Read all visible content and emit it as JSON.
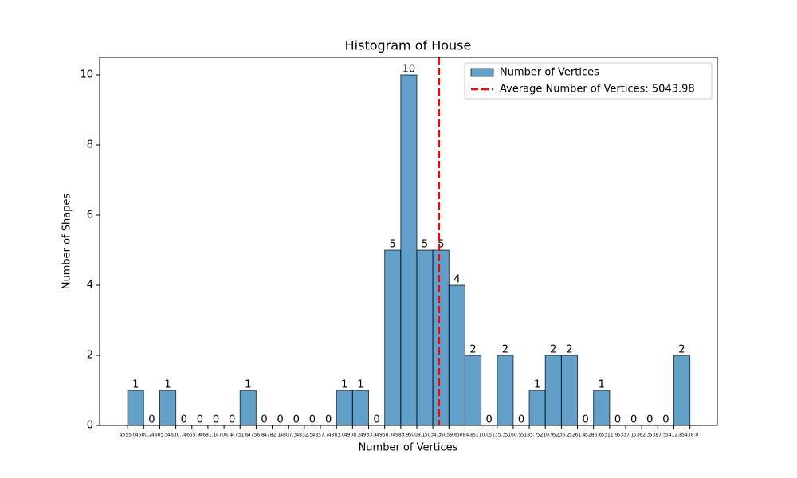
{
  "chart_data": {
    "type": "histogram",
    "title": "Histogram of House",
    "x_label": "Number of Vertices",
    "y_label": "Number of Shapes",
    "series_name": "Number of Vertices",
    "color": "#1f77b4",
    "bins": [
      4555.0,
      4580.2,
      4605.5,
      4630.7,
      4655.9,
      4681.1,
      4706.4,
      4731.6,
      4756.8,
      4782.1,
      4807.3,
      4832.5,
      4857.7,
      4883.0,
      4908.2,
      4933.4,
      4958.7,
      4983.9,
      5009.1,
      5034.3,
      5059.6,
      5084.8,
      5110.0,
      5135.3,
      5160.5,
      5185.7,
      5210.9,
      5236.2,
      5261.4,
      5286.6,
      5311.9,
      5337.1,
      5362.3,
      5387.5,
      5412.8,
      5438.0
    ],
    "counts": [
      1,
      0,
      1,
      0,
      0,
      0,
      0,
      1,
      0,
      0,
      0,
      0,
      0,
      1,
      1,
      0,
      5,
      10,
      5,
      5,
      4,
      2,
      0,
      2,
      0,
      1,
      2,
      2,
      0,
      1,
      0,
      0,
      0,
      0,
      2
    ],
    "mean_line": {
      "value": 5043.98,
      "label": "Average Number of Vertices: 5043.98",
      "color": "#ff0000"
    },
    "xlim": [
      4511,
      5481
    ],
    "ylim": [
      0,
      10.5
    ],
    "yticks": [
      0,
      2,
      4,
      6,
      8,
      10
    ],
    "xticks": [
      {
        "value": 4555.0,
        "label": "4555.0"
      },
      {
        "value": 4580.2,
        "label": "4580.2"
      },
      {
        "value": 4605.5,
        "label": "4605.5"
      },
      {
        "value": 4630.7,
        "label": "4630.7"
      },
      {
        "value": 4655.9,
        "label": "4655.9"
      },
      {
        "value": 4681.1,
        "label": "4681.1"
      },
      {
        "value": 4706.4,
        "label": "4706.4"
      },
      {
        "value": 4731.6,
        "label": "4731.6"
      },
      {
        "value": 4756.8,
        "label": "4756.8"
      },
      {
        "value": 4782.1,
        "label": "4782.1"
      },
      {
        "value": 4807.3,
        "label": "4807.3"
      },
      {
        "value": 4832.5,
        "label": "4832.5"
      },
      {
        "value": 4857.7,
        "label": "4857.7"
      },
      {
        "value": 4883.0,
        "label": "4883.0"
      },
      {
        "value": 4908.2,
        "label": "4908.2"
      },
      {
        "value": 4933.4,
        "label": "4933.4"
      },
      {
        "value": 4958.7,
        "label": "4958.7"
      },
      {
        "value": 4983.9,
        "label": "4983.9"
      },
      {
        "value": 5009.1,
        "label": "5009.1"
      },
      {
        "value": 5034.3,
        "label": "5034.3"
      },
      {
        "value": 5059.6,
        "label": "5059.6"
      },
      {
        "value": 5084.8,
        "label": "5084.8"
      },
      {
        "value": 5110.0,
        "label": "5110.0"
      },
      {
        "value": 5135.3,
        "label": "5135.3"
      },
      {
        "value": 5160.5,
        "label": "5160.5"
      },
      {
        "value": 5185.7,
        "label": "5185.7"
      },
      {
        "value": 5210.9,
        "label": "5210.9"
      },
      {
        "value": 5236.2,
        "label": "5236.2"
      },
      {
        "value": 5261.4,
        "label": "5261.4"
      },
      {
        "value": 5286.6,
        "label": "5286.6"
      },
      {
        "value": 5311.9,
        "label": "5311.9"
      },
      {
        "value": 5337.1,
        "label": "5337.1"
      },
      {
        "value": 5362.3,
        "label": "5362.3"
      },
      {
        "value": 5387.5,
        "label": "5387.5"
      },
      {
        "value": 5412.8,
        "label": "5412.8"
      },
      {
        "value": 5438.0,
        "label": "5438.0"
      }
    ],
    "legend": "upper right",
    "grid": false
  }
}
